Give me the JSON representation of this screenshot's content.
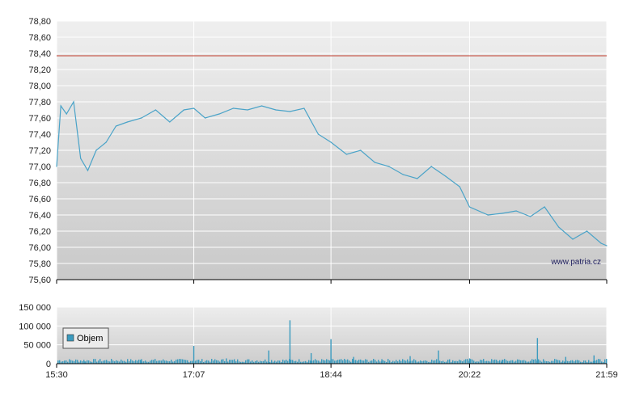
{
  "watermark": "www.patria.cz",
  "legend": {
    "label": "Objem"
  },
  "colors": {
    "price_line": "#4aa3c8",
    "reference_line": "#c0392b",
    "volume_bar": "#3a9bbf",
    "grid": "#ffffff"
  },
  "chart_data": [
    {
      "type": "line",
      "title": "",
      "xlabel": "",
      "ylabel": "",
      "grid": true,
      "ylim": [
        75.6,
        78.8
      ],
      "y_ticks": [
        "78,80",
        "78,60",
        "78,40",
        "78,20",
        "78,00",
        "77,80",
        "77,60",
        "77,40",
        "77,20",
        "77,00",
        "76,80",
        "76,60",
        "76,40",
        "76,20",
        "76,00",
        "75,80",
        "75,60"
      ],
      "x_ticks": [
        "15:30",
        "17:07",
        "18:44",
        "20:22",
        "21:59"
      ],
      "reference_line": 78.37,
      "series": [
        {
          "x": [
            "15:30",
            "15:33",
            "15:37",
            "15:42",
            "15:47",
            "15:52",
            "15:58",
            "16:05",
            "16:12",
            "16:20",
            "16:30",
            "16:40",
            "16:50",
            "17:00",
            "17:07",
            "17:15",
            "17:25",
            "17:35",
            "17:45",
            "17:55",
            "18:05",
            "18:15",
            "18:25",
            "18:35",
            "18:44",
            "18:55",
            "19:05",
            "19:15",
            "19:25",
            "19:35",
            "19:45",
            "19:55",
            "20:05",
            "20:15",
            "20:22",
            "20:35",
            "20:45",
            "20:55",
            "21:05",
            "21:15",
            "21:25",
            "21:35",
            "21:45",
            "21:55",
            "21:59"
          ],
          "values": [
            77.0,
            77.75,
            77.65,
            77.8,
            77.1,
            76.95,
            77.2,
            77.3,
            77.5,
            77.55,
            77.6,
            77.7,
            77.55,
            77.7,
            77.72,
            77.6,
            77.65,
            77.72,
            77.7,
            77.75,
            77.7,
            77.68,
            77.72,
            77.4,
            77.3,
            77.15,
            77.2,
            77.05,
            77.0,
            76.9,
            76.85,
            77.0,
            76.88,
            76.75,
            76.5,
            76.4,
            76.42,
            76.45,
            76.38,
            76.5,
            76.25,
            76.1,
            76.2,
            76.05,
            76.02
          ]
        }
      ]
    },
    {
      "type": "bar",
      "title": "",
      "xlabel": "",
      "ylabel": "",
      "grid": true,
      "ylim": [
        0,
        150000
      ],
      "y_ticks": [
        "150 000",
        "100 000",
        "50 000",
        "0"
      ],
      "x_ticks": [
        "15:30",
        "17:07",
        "18:44",
        "20:22",
        "21:59"
      ],
      "series": [
        {
          "name": "Objem",
          "x": [
            "15:32",
            "15:50",
            "16:30",
            "17:07",
            "17:30",
            "18:00",
            "18:15",
            "18:30",
            "18:44",
            "19:00",
            "19:20",
            "19:40",
            "20:00",
            "20:22",
            "20:45",
            "21:10",
            "21:30",
            "21:50"
          ],
          "values": [
            8000,
            6000,
            12000,
            47000,
            14000,
            35000,
            115000,
            28000,
            65000,
            18000,
            12000,
            20000,
            35000,
            14000,
            10000,
            68000,
            18000,
            22000
          ]
        }
      ]
    }
  ]
}
